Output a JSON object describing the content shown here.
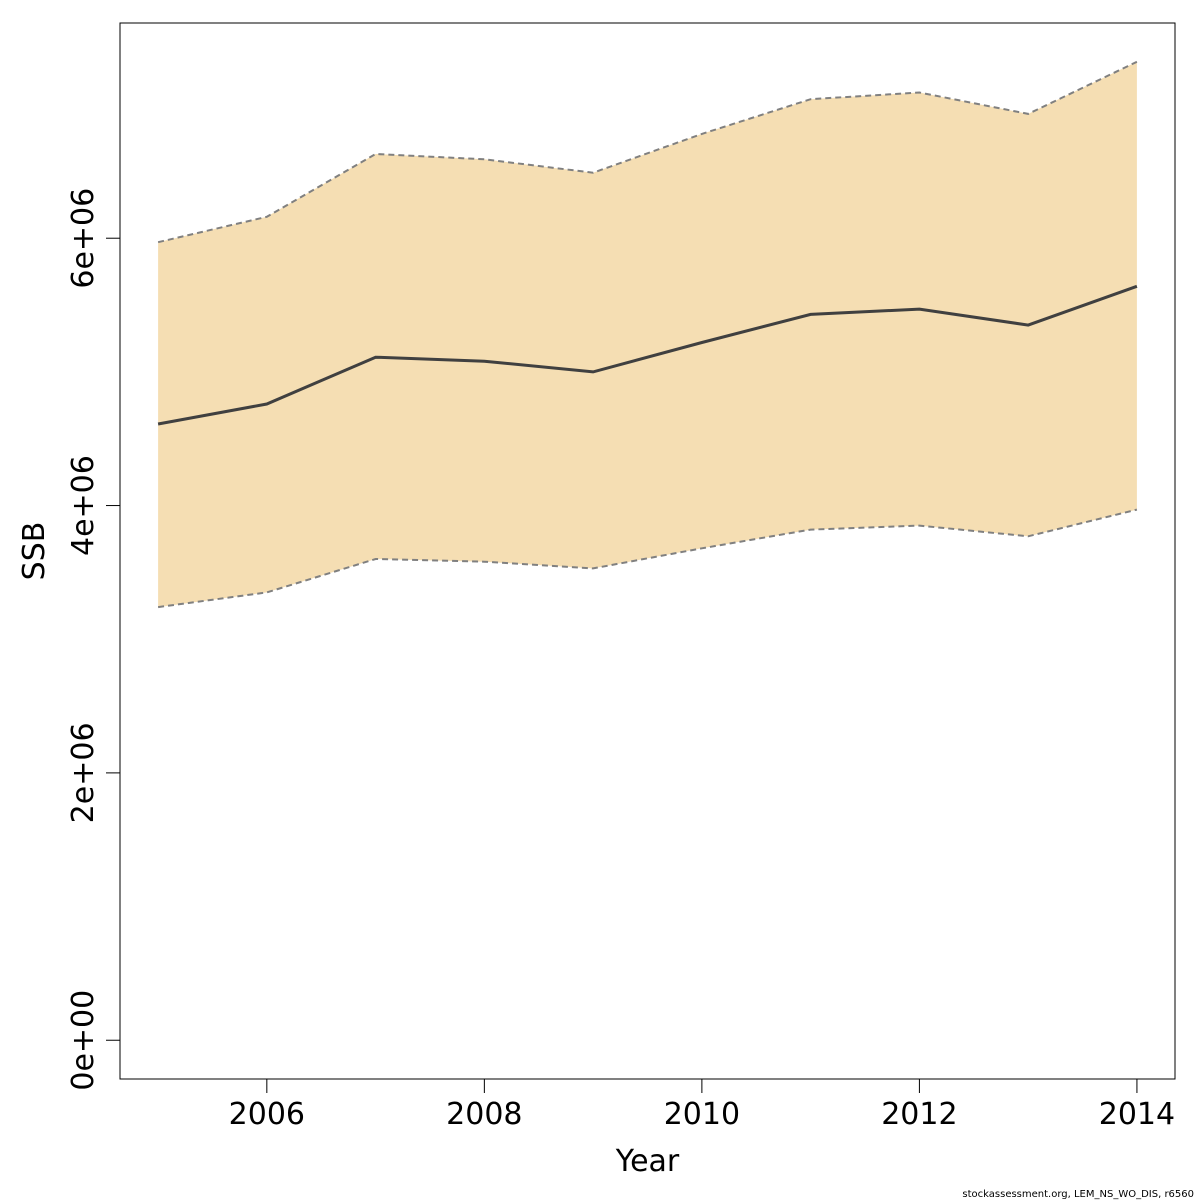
{
  "chart_data": {
    "type": "area",
    "xlabel": "Year",
    "ylabel": "SSB",
    "x": [
      2005,
      2006,
      2007,
      2008,
      2009,
      2010,
      2011,
      2012,
      2013,
      2014
    ],
    "series": [
      {
        "values": [
          4610000,
          4760000,
          5110000,
          5080000,
          5000000,
          5220000,
          5430000,
          5470000,
          5350000,
          5640000
        ]
      }
    ],
    "upper": [
      5970000,
      6160000,
      6630000,
      6590000,
      6490000,
      6780000,
      7040000,
      7090000,
      6930000,
      7320000
    ],
    "lower": [
      3240000,
      3350000,
      3600000,
      3580000,
      3530000,
      3680000,
      3820000,
      3850000,
      3770000,
      3970000
    ],
    "xticks": [
      2006,
      2008,
      2010,
      2012,
      2014
    ],
    "xtick_labels": [
      "2006",
      "2008",
      "2010",
      "2012",
      "2014"
    ],
    "yticks": [
      0,
      2000000,
      4000000,
      6000000
    ],
    "ytick_labels": [
      "0e+00",
      "2e+06",
      "4e+06",
      "6e+06"
    ],
    "xlim": [
      2004.65,
      2014.35
    ],
    "ylim": [
      -290000,
      7610000
    ],
    "grid": false,
    "colors": {
      "band_fill": "#f5deb3",
      "band_edge": "#808080",
      "line": "#404040",
      "axis": "#000000"
    }
  },
  "footnote": "stockassessment.org, LEM_NS_WO_DIS, r6560"
}
